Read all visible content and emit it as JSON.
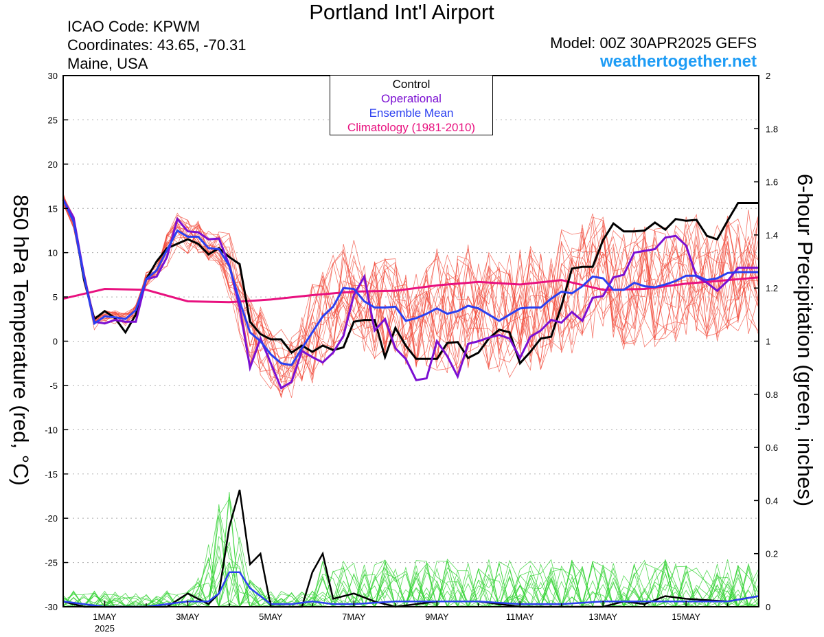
{
  "title": "Portland Int'l Airport",
  "info": {
    "icao": "ICAO Code: KPWM",
    "coords": "Coordinates: 43.65, -70.31",
    "region": "Maine, USA",
    "model": "Model: 00Z 30APR2025 GEFS",
    "site": "weathertogether.net"
  },
  "legend": {
    "control": "Control",
    "operational": "Operational",
    "mean": "Ensemble Mean",
    "climo": "Climatology (1981-2010)"
  },
  "colors": {
    "control": "#000000",
    "operational": "#7b0fd2",
    "mean": "#2b3ff0",
    "climo": "#e8117f",
    "members_temp": "#f24a3a",
    "members_precip": "#36d436",
    "site": "#1e9cf5"
  },
  "chart_data": {
    "type": "line",
    "title": "Portland Int'l Airport",
    "ylabel": "850 hPa Temperature (red, °C)",
    "y2label": "6-hour Precipitation (green, inches)",
    "x_unit": "days from 00Z 30 Apr 2025",
    "xlim": [
      0,
      16.75
    ],
    "ylim": [
      -30,
      30
    ],
    "y2lim": [
      0,
      2
    ],
    "yticks": [
      "30",
      "25",
      "20",
      "15",
      "10",
      "5",
      "0",
      "-5",
      "-10",
      "-15",
      "-20",
      "-25",
      "-30"
    ],
    "y2ticks": [
      "2",
      "1.8",
      "1.6",
      "1.4",
      "1.2",
      "1",
      "0.8",
      "0.6",
      "0.4",
      "0.2",
      "0"
    ],
    "xticks": [
      {
        "x": 1,
        "label": "1MAY",
        "sub": "2025"
      },
      {
        "x": 3,
        "label": "3MAY",
        "sub": ""
      },
      {
        "x": 5,
        "label": "5MAY",
        "sub": ""
      },
      {
        "x": 7,
        "label": "7MAY",
        "sub": ""
      },
      {
        "x": 9,
        "label": "9MAY",
        "sub": ""
      },
      {
        "x": 11,
        "label": "11MAY",
        "sub": ""
      },
      {
        "x": 13,
        "label": "13MAY",
        "sub": ""
      },
      {
        "x": 15,
        "label": "15MAY",
        "sub": ""
      }
    ],
    "grid": true,
    "climatology": {
      "x": [
        0,
        1,
        2,
        3,
        4,
        5,
        6,
        7,
        8,
        9,
        10,
        11,
        12,
        13,
        14,
        15,
        16.75
      ],
      "y": [
        4.8,
        5.9,
        5.8,
        4.5,
        4.4,
        4.7,
        5.2,
        5.6,
        5.7,
        6.3,
        6.7,
        6.4,
        6.9,
        5.8,
        5.9,
        6.5,
        7.2
      ]
    },
    "control_temp": {
      "x": [
        0,
        0.25,
        0.5,
        0.75,
        1,
        1.25,
        1.5,
        1.75,
        2,
        2.25,
        2.5,
        2.75,
        3,
        3.25,
        3.5,
        3.75,
        4,
        4.25,
        4.5,
        4.75,
        5,
        5.25,
        5.5,
        5.75,
        6,
        6.25,
        6.5,
        6.75,
        7,
        7.25,
        7.5,
        7.75,
        8,
        8.25,
        8.5,
        8.75,
        9,
        9.25,
        9.5,
        9.75,
        10,
        10.25,
        10.5,
        10.75,
        11,
        11.25,
        11.5,
        11.75,
        12,
        12.25,
        12.5,
        12.75,
        13,
        13.25,
        13.5,
        13.75,
        14,
        14.25,
        14.5,
        14.75,
        15,
        15.25,
        15.5,
        15.75,
        16,
        16.25,
        16.5,
        16.75
      ],
      "y": [
        16,
        13.8,
        7,
        2.5,
        3.4,
        2.6,
        1,
        3,
        7,
        9,
        10.5,
        11,
        11.5,
        11,
        9.8,
        10.5,
        9.5,
        8.7,
        2.2,
        0.8,
        0.2,
        0.2,
        -1.3,
        -0.5,
        -1.2,
        -0.5,
        -1,
        -0.7,
        2.2,
        2.4,
        2.4,
        -1.8,
        1.5,
        -0.5,
        -2,
        -2,
        -2,
        -0.2,
        -0.1,
        -1.9,
        -1.3,
        0.3,
        1.3,
        1,
        -2.5,
        -1.2,
        0.3,
        0.5,
        4,
        8.2,
        8.4,
        8.4,
        11.4,
        13.3,
        12.4,
        12.4,
        12.5,
        13.4,
        12.6,
        13.8,
        13.6,
        13.7,
        11.9,
        11.5,
        13.6,
        15.6,
        15.6,
        15.6
      ]
    },
    "operational_temp": {
      "x": [
        0,
        0.25,
        0.5,
        0.75,
        1,
        1.25,
        1.5,
        1.75,
        2,
        2.25,
        2.5,
        2.75,
        3,
        3.25,
        3.5,
        3.75,
        4,
        4.25,
        4.5,
        4.75,
        5,
        5.25,
        5.5,
        5.75,
        6,
        6.25,
        6.5,
        6.75,
        7,
        7.25,
        7.5,
        7.75,
        8,
        8.25,
        8.5,
        8.75,
        9,
        9.25,
        9.5,
        9.75,
        10,
        10.25,
        10.5,
        10.75,
        11,
        11.25,
        11.5,
        11.75,
        12,
        12.25,
        12.5,
        12.75,
        13,
        13.25,
        13.5,
        13.75,
        14,
        14.25,
        14.5,
        14.75,
        15,
        15.25,
        15.5,
        15.75,
        16,
        16.25,
        16.5,
        16.75
      ],
      "y": [
        16,
        14,
        7.5,
        2.2,
        2,
        2.4,
        2.2,
        2.2,
        7,
        7.3,
        9.5,
        13.8,
        12.4,
        12.3,
        11.5,
        11.6,
        8.6,
        3.8,
        -3,
        0.3,
        -2.5,
        -5.3,
        -4.6,
        -1.1,
        -1.8,
        -2.4,
        -1.3,
        0.6,
        5.2,
        7.3,
        1.2,
        2.5,
        -0.8,
        -2,
        -4.4,
        -4.2,
        0,
        -1.7,
        -4,
        -0.3,
        0,
        0.4,
        0.7,
        0.3,
        -1.9,
        0.5,
        1.2,
        2.4,
        2.1,
        3.3,
        2.3,
        4.9,
        5.1,
        7.2,
        7.5,
        10,
        10.2,
        10.4,
        11.7,
        11.9,
        10.8,
        7.3,
        6.6,
        5.7,
        6.8,
        8.3,
        8.3,
        8.3
      ]
    },
    "mean_temp": {
      "x": [
        0,
        0.25,
        0.5,
        0.75,
        1,
        1.25,
        1.5,
        1.75,
        2,
        2.25,
        2.5,
        2.75,
        3,
        3.25,
        3.5,
        3.75,
        4,
        4.25,
        4.5,
        4.75,
        5,
        5.25,
        5.5,
        5.75,
        6,
        6.25,
        6.5,
        6.75,
        7,
        7.25,
        7.5,
        7.75,
        8,
        8.25,
        8.5,
        8.75,
        9,
        9.25,
        9.5,
        9.75,
        10,
        10.25,
        10.5,
        10.75,
        11,
        11.25,
        11.5,
        11.75,
        12,
        12.25,
        12.5,
        12.75,
        13,
        13.25,
        13.5,
        13.75,
        14,
        14.25,
        14.5,
        14.75,
        15,
        15.25,
        15.5,
        15.75,
        16,
        16.25,
        16.5,
        16.75
      ],
      "y": [
        16,
        13.5,
        7.3,
        2,
        2.8,
        2.7,
        2.5,
        3.5,
        7,
        8,
        10.3,
        12.5,
        11.8,
        11.8,
        10.5,
        10.4,
        8.5,
        4.5,
        1,
        0,
        -1.5,
        -2.5,
        -2.7,
        -0.8,
        1,
        2.8,
        3.9,
        6,
        5.9,
        4.5,
        3.8,
        3.8,
        3.9,
        2.3,
        2.6,
        3.1,
        3.7,
        3.1,
        3.4,
        4,
        3.7,
        3,
        2.3,
        3,
        3.7,
        3.8,
        3.8,
        4.8,
        5.6,
        5.4,
        6.2,
        7.3,
        7.1,
        5.8,
        5.8,
        6.6,
        6.2,
        6.1,
        6.4,
        6.8,
        7.4,
        7.4,
        6.9,
        7.1,
        7.7,
        7.8,
        7.8,
        7.8
      ]
    },
    "control_precip": {
      "x": [
        0,
        0.5,
        1,
        1.5,
        2,
        2.5,
        3,
        3.5,
        3.75,
        4,
        4.25,
        4.5,
        4.75,
        5,
        5.5,
        5.75,
        6,
        6.25,
        6.5,
        7,
        7.5,
        8,
        9,
        10,
        11,
        12,
        13,
        13.5,
        14,
        14.5,
        15,
        16,
        16.75
      ],
      "y": [
        0.02,
        0,
        0,
        0,
        0,
        0,
        0.05,
        0.01,
        0.05,
        0.3,
        0.44,
        0.16,
        0.2,
        0,
        0,
        0,
        0.13,
        0.2,
        0.03,
        0.05,
        0.02,
        0,
        0.02,
        0.02,
        0,
        0,
        0,
        0.02,
        0.01,
        0.04,
        0.03,
        0.02,
        0.04
      ]
    },
    "mean_precip": {
      "x": [
        0,
        0.5,
        1,
        2,
        2.5,
        3,
        3.5,
        3.75,
        4,
        4.25,
        4.5,
        5,
        5.5,
        6,
        6.5,
        7,
        8,
        9,
        10,
        11,
        12,
        13,
        14,
        15,
        16,
        16.75
      ],
      "y": [
        0.02,
        0.01,
        0,
        0,
        0.01,
        0.02,
        0.02,
        0.05,
        0.13,
        0.13,
        0.07,
        0.01,
        0.01,
        0.02,
        0.01,
        0.01,
        0.02,
        0.02,
        0.02,
        0.01,
        0.01,
        0.02,
        0.02,
        0.02,
        0.02,
        0.04
      ]
    }
  }
}
